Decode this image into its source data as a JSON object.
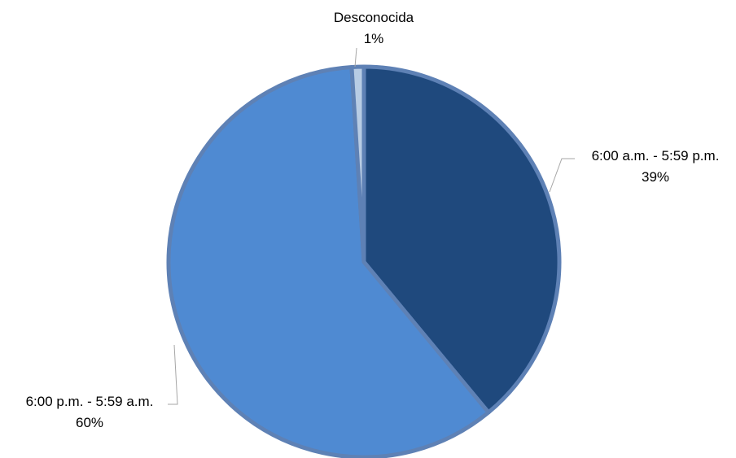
{
  "chart_data": {
    "type": "pie",
    "title": "",
    "start_angle_deg": 0,
    "direction": "clockwise",
    "slices": [
      {
        "label": "6:00 a.m. - 5:59 p.m.",
        "value": 39,
        "display": "39%",
        "color": "#1f497d"
      },
      {
        "label": "6:00 p.m. - 5:59 a.m.",
        "value": 60,
        "display": "60%",
        "color": "#4f8ad2"
      },
      {
        "label": "Desconocida",
        "value": 1,
        "display": "1%",
        "color": "#b8cce4"
      }
    ],
    "legend": "none",
    "data_labels": "outside with leader lines"
  },
  "colors": {
    "slice_border": "#5e81b5",
    "leader_line": "#a6a6a6",
    "label_text": "#000000"
  }
}
